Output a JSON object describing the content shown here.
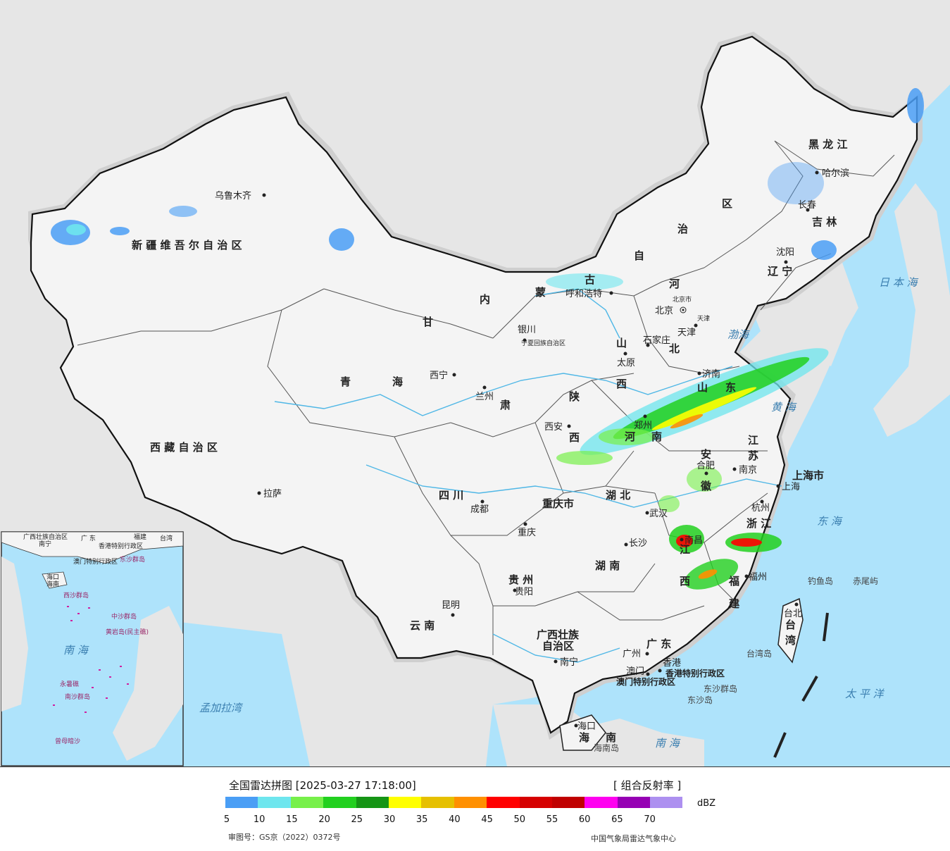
{
  "map": {
    "provinces": {
      "xinjiang": "新 疆 维 吾 尔 自 治 区",
      "xizang": "西 藏 自 治 区",
      "qinghai_1": "青",
      "qinghai_2": "海",
      "gansu_1": "甘",
      "gansu_2": "肃",
      "neimenggu_1": "内",
      "neimenggu_2": "蒙",
      "neimenggu_3": "古",
      "neimenggu_4": "自",
      "neimenggu_5": "治",
      "neimenggu_6": "区",
      "heilongjiang": "黑 龙 江",
      "jilin": "吉 林",
      "liaoning": "辽 宁",
      "hebei_1": "河",
      "hebei_2": "北",
      "shanxi_1": "山",
      "shanxi_2": "西",
      "shandong_1": "山",
      "shandong_2": "东",
      "henan_1": "河",
      "henan_2": "南",
      "shaanxi_1": "陕",
      "shaanxi_2": "西",
      "sichuan": "四 川",
      "chongqing": "重庆市",
      "hubei": "湖 北",
      "hunan": "湖 南",
      "guizhou": "贵 州",
      "yunnan": "云 南",
      "guangxi_1": "广西壮族",
      "guangxi_2": "自治区",
      "guangdong": "广 东",
      "jiangxi_1": "江",
      "jiangxi_2": "西",
      "fujian_1": "福",
      "fujian_2": "建",
      "zhejiang": "浙 江",
      "jiangsu_1": "江",
      "jiangsu_2": "苏",
      "anhui_1": "安",
      "anhui_2": "徽",
      "shanghai": "上海市",
      "hainan_1": "海",
      "hainan_2": "南",
      "taiwan_1": "台",
      "taiwan_2": "湾",
      "ningxia": "宁夏回族自治区",
      "beijing_city": "北京市",
      "tianjin_city": "天津",
      "hongkong_sar": "香港特别行政区",
      "macau_sar": "澳门特别行政区"
    },
    "cities": {
      "urumqi": "乌鲁木齐",
      "lhasa": "拉萨",
      "xining": "西宁",
      "lanzhou": "兰州",
      "yinchuan": "银川",
      "hohhot": "呼和浩特",
      "beijing": "北京",
      "tianjin": "天津",
      "shijiazhuang": "石家庄",
      "taiyuan": "太原",
      "jinan": "济南",
      "zhengzhou": "郑州",
      "xian": "西安",
      "harbin": "哈尔滨",
      "changchun": "长春",
      "shenyang": "沈阳",
      "hefei": "合肥",
      "nanjing": "南京",
      "shanghai": "上海",
      "hangzhou": "杭州",
      "wuhan": "武汉",
      "nanchang": "南昌",
      "changsha": "长沙",
      "fuzhou": "福州",
      "taibei": "台北",
      "chengdu": "成都",
      "chongqing": "重庆",
      "guiyang": "贵阳",
      "kunming": "昆明",
      "nanning": "南宁",
      "guangzhou": "广州",
      "hongkong": "香港",
      "macau": "澳门",
      "haikou": "海口"
    },
    "islands": {
      "diaoyu": "钓鱼岛",
      "chiwei": "赤尾屿",
      "taiwan_island": "台湾岛",
      "dongsha_islands": "东沙群岛",
      "dongsha": "东沙岛",
      "hainan_island": "海南岛"
    },
    "seas": {
      "bohai": "渤海",
      "huanghai": "黄 海",
      "donghai": "东 海",
      "nanhai": "南 海",
      "taipingyang": "太 平 洋",
      "ribenhai": "日 本 海",
      "mengjiala": "孟加拉湾"
    },
    "inset": {
      "guangxi": "广西壮族自治区",
      "nanning": "南宁",
      "guangdong": "广 东",
      "fujian": "福建",
      "taiwan": "台湾",
      "hk": "香港特别行政区",
      "macau": "澳门特别行政区",
      "dongsha": "东沙群岛",
      "haikou": "海口",
      "hainan": "海南",
      "xisha": "西沙群岛",
      "zhongsha": "中沙群岛",
      "huangyan": "黄岩岛(民主礁)",
      "nanhai": "南 海",
      "yongshu": "永暑礁",
      "nansha": "南沙群岛",
      "zengmu": "曾母暗沙"
    }
  },
  "legend": {
    "title": "全国雷达拼图 [2025-03-27 17:18:00]",
    "product": "[ 组合反射率 ]",
    "unit": "dBZ",
    "ticks": [
      "5",
      "10",
      "15",
      "20",
      "25",
      "30",
      "35",
      "40",
      "45",
      "50",
      "55",
      "60",
      "65",
      "70"
    ],
    "colors": [
      "#4a9ef5",
      "#6ee6ee",
      "#77f04a",
      "#22d01f",
      "#159515",
      "#ffff00",
      "#e6c000",
      "#ff9000",
      "#ff0000",
      "#d60000",
      "#c00000",
      "#ff00f0",
      "#9600b4",
      "#ad90f0"
    ],
    "review_number": "审图号：GS京（2022）0372号",
    "source": "中国气象局雷达气象中心"
  }
}
